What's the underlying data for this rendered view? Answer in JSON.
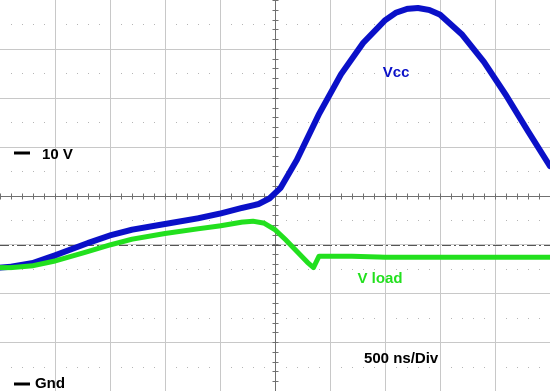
{
  "chart_data": {
    "type": "line",
    "title": "",
    "xlabel": "",
    "ylabel": "",
    "timebase_label": "500 ns/Div",
    "volts_marker_label": "10 V",
    "ground_label": "Gnd",
    "x_unit": "ns",
    "y_unit": "V",
    "xlim": [
      0,
      5000
    ],
    "ylim": [
      0,
      40
    ],
    "grid": true,
    "legend": "none",
    "reference_line_y": 15,
    "series": [
      {
        "name": "Vcc",
        "color": "#0a10c8",
        "x": [
          0,
          100,
          300,
          500,
          800,
          1000,
          1200,
          1500,
          1800,
          2000,
          2200,
          2350,
          2450,
          2550,
          2700,
          2900,
          3100,
          3300,
          3500,
          3600,
          3700,
          3800,
          3900,
          4000,
          4200,
          4400,
          4600,
          4800,
          5000
        ],
        "y": [
          12.6,
          12.7,
          13.1,
          13.9,
          15.2,
          16.0,
          16.6,
          17.2,
          17.8,
          18.3,
          18.9,
          19.3,
          19.9,
          21.0,
          24.0,
          28.8,
          33.0,
          36.3,
          38.7,
          39.5,
          39.9,
          40.0,
          39.8,
          39.3,
          37.2,
          34.3,
          30.8,
          27.0,
          23.3
        ]
      },
      {
        "name": "V load",
        "color": "#22e01e",
        "x": [
          0,
          100,
          300,
          500,
          800,
          1000,
          1200,
          1500,
          1800,
          2000,
          2200,
          2300,
          2400,
          2500,
          2600,
          2700,
          2800,
          2850,
          2900,
          3000,
          3200,
          3500,
          4000,
          4500,
          5000
        ],
        "y": [
          12.6,
          12.6,
          12.8,
          13.3,
          14.3,
          15.0,
          15.6,
          16.2,
          16.7,
          17.0,
          17.4,
          17.5,
          17.3,
          16.6,
          15.5,
          14.3,
          13.1,
          12.6,
          13.8,
          13.8,
          13.8,
          13.7,
          13.7,
          13.7,
          13.7
        ]
      }
    ],
    "annotations": [
      {
        "text": "Vcc",
        "series": "Vcc",
        "x": 3480,
        "y": 32.7
      },
      {
        "text": "V load",
        "series": "V load",
        "x": 3250,
        "y": 11.0
      }
    ]
  }
}
